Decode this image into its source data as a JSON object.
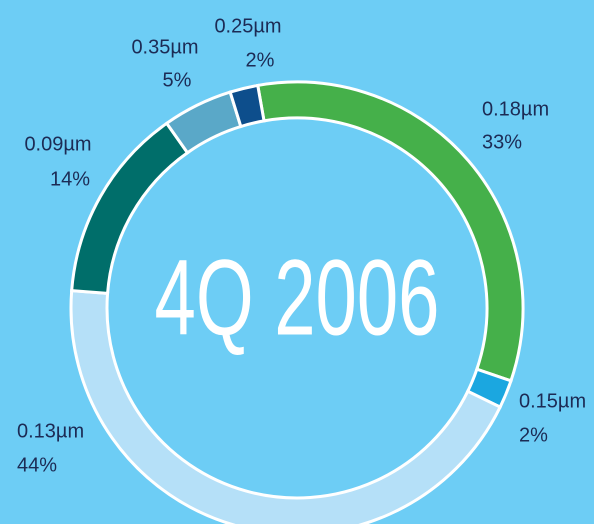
{
  "chart_data": {
    "type": "donut",
    "title": "4Q 2006",
    "categories": [
      "0.18µm",
      "0.15µm",
      "0.13µm",
      "0.09µm",
      "0.35µm",
      "0.25µm"
    ],
    "values": [
      33,
      2,
      44,
      14,
      5,
      2
    ],
    "value_labels": [
      "33%",
      "2%",
      "44%",
      "14%",
      "5%",
      "2%"
    ],
    "colors": [
      "#45b04a",
      "#1ba7e0",
      "#b5e0f8",
      "#006e6a",
      "#5aa8c8",
      "#0d4e8c"
    ]
  }
}
